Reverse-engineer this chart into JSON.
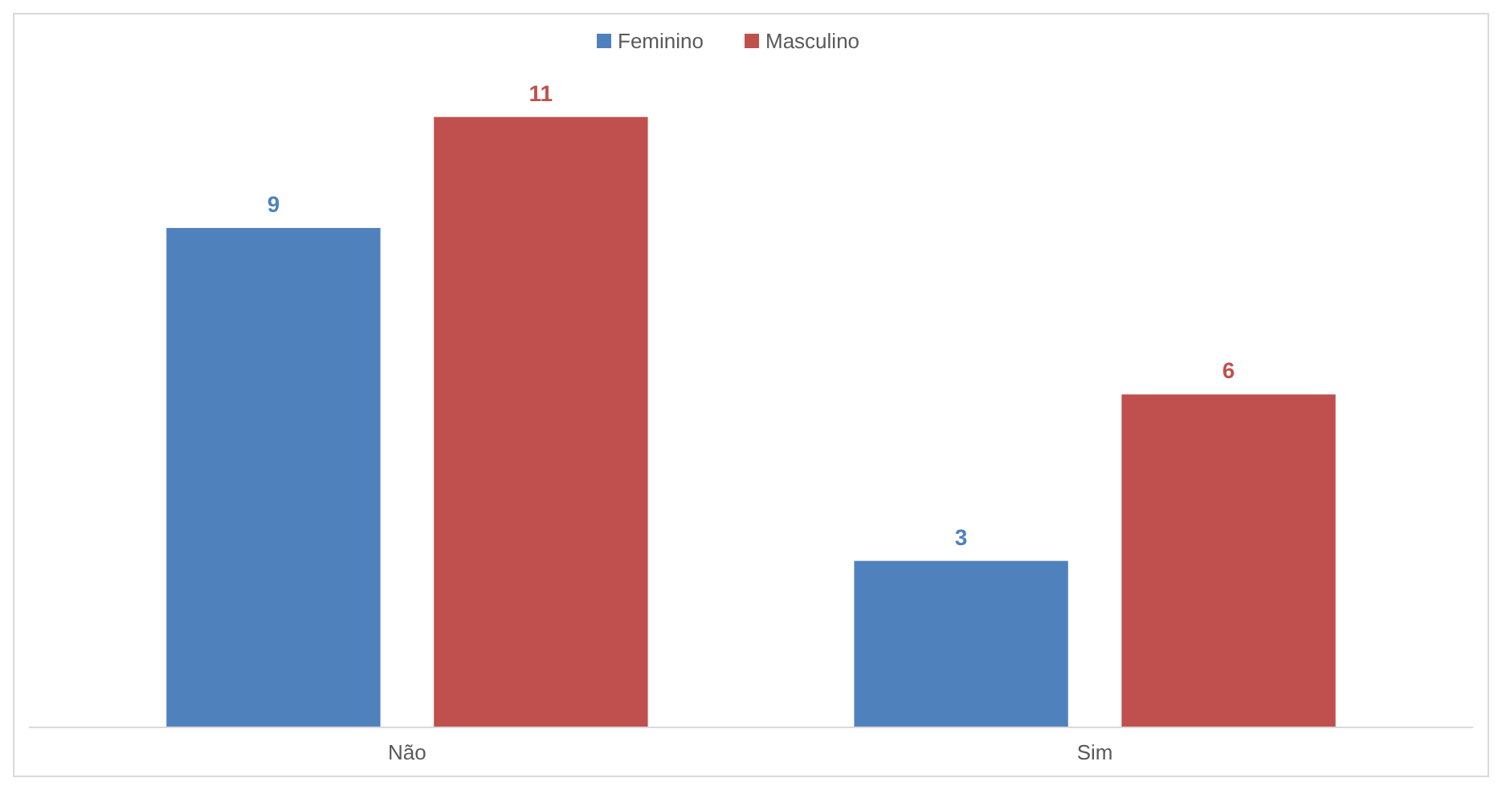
{
  "chart_data": {
    "type": "bar",
    "categories": [
      "Não",
      "Sim"
    ],
    "series": [
      {
        "name": "Feminino",
        "color": "#4f81bd",
        "values": [
          9,
          3
        ]
      },
      {
        "name": "Masculino",
        "color": "#c0504d",
        "values": [
          11,
          6
        ]
      }
    ],
    "data_labels": true,
    "legend": "top",
    "grid": false
  }
}
